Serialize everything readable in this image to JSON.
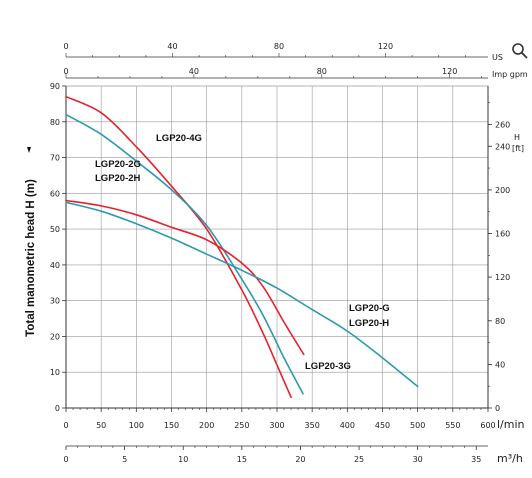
{
  "chart_data": {
    "type": "line",
    "ylabel": "Total manometric head H (m)",
    "ylim": [
      0,
      90
    ],
    "xlim": [
      0,
      600
    ],
    "x_primary_unit": "l/min",
    "y_ticks": [
      "0",
      "10",
      "20",
      "30",
      "40",
      "50",
      "60",
      "70",
      "80",
      "90"
    ],
    "x_ticks_lmin": [
      "0",
      "50",
      "100",
      "150",
      "200",
      "250",
      "300",
      "350",
      "400",
      "450",
      "500",
      "550",
      "600"
    ],
    "x_ticks_m3h": [
      "0",
      "5",
      "10",
      "15",
      "20",
      "25",
      "30",
      "35"
    ],
    "x_m3h_unit": "m³/h",
    "x_ticks_usgpm": [
      "0",
      "40",
      "80",
      "120"
    ],
    "x_usgpm_unit": "US",
    "x_ticks_impgpm": [
      "0",
      "40",
      "80",
      "120"
    ],
    "x_impgpm_unit": "Imp gpm",
    "y_ticks_ft": [
      "0",
      "40",
      "80",
      "120",
      "160",
      "200",
      "240",
      "260"
    ],
    "y_ft_unit_line1": "H",
    "y_ft_unit_line2": "[ft]",
    "series": [
      {
        "name": "LGP20-4G",
        "color": "#e8202e",
        "x": [
          0,
          50,
          100,
          150,
          200,
          250,
          280,
          300,
          320
        ],
        "y": [
          87,
          82.5,
          73,
          62,
          50,
          33,
          21,
          12,
          3
        ]
      },
      {
        "name": "LGP20-2G LGP20-2H",
        "color": "#2d98b2",
        "x": [
          0,
          50,
          100,
          150,
          200,
          250,
          280,
          310,
          337
        ],
        "y": [
          82,
          76.5,
          69,
          61,
          51,
          36,
          26,
          14,
          4
        ]
      },
      {
        "name": "LGP20-3G",
        "color": "#e8202e",
        "x": [
          0,
          50,
          100,
          150,
          200,
          250,
          280,
          310,
          338
        ],
        "y": [
          58,
          56.5,
          54,
          50.5,
          47,
          40.5,
          34,
          24,
          15
        ]
      },
      {
        "name": "LGP20-G LGP20-H",
        "color": "#2d98b2",
        "x": [
          0,
          50,
          100,
          150,
          200,
          250,
          300,
          350,
          400,
          450,
          500
        ],
        "y": [
          57.5,
          55,
          51.5,
          47.5,
          43,
          38.5,
          33.5,
          27.5,
          21.5,
          14,
          6
        ]
      }
    ],
    "labels": [
      {
        "text": "LGP20-4G"
      },
      {
        "text": "LGP20-2G"
      },
      {
        "text": "LGP20-2H"
      },
      {
        "text": "LGP20-3G"
      },
      {
        "text": "LGP20-G"
      },
      {
        "text": "LGP20-H"
      }
    ],
    "grid": true
  }
}
